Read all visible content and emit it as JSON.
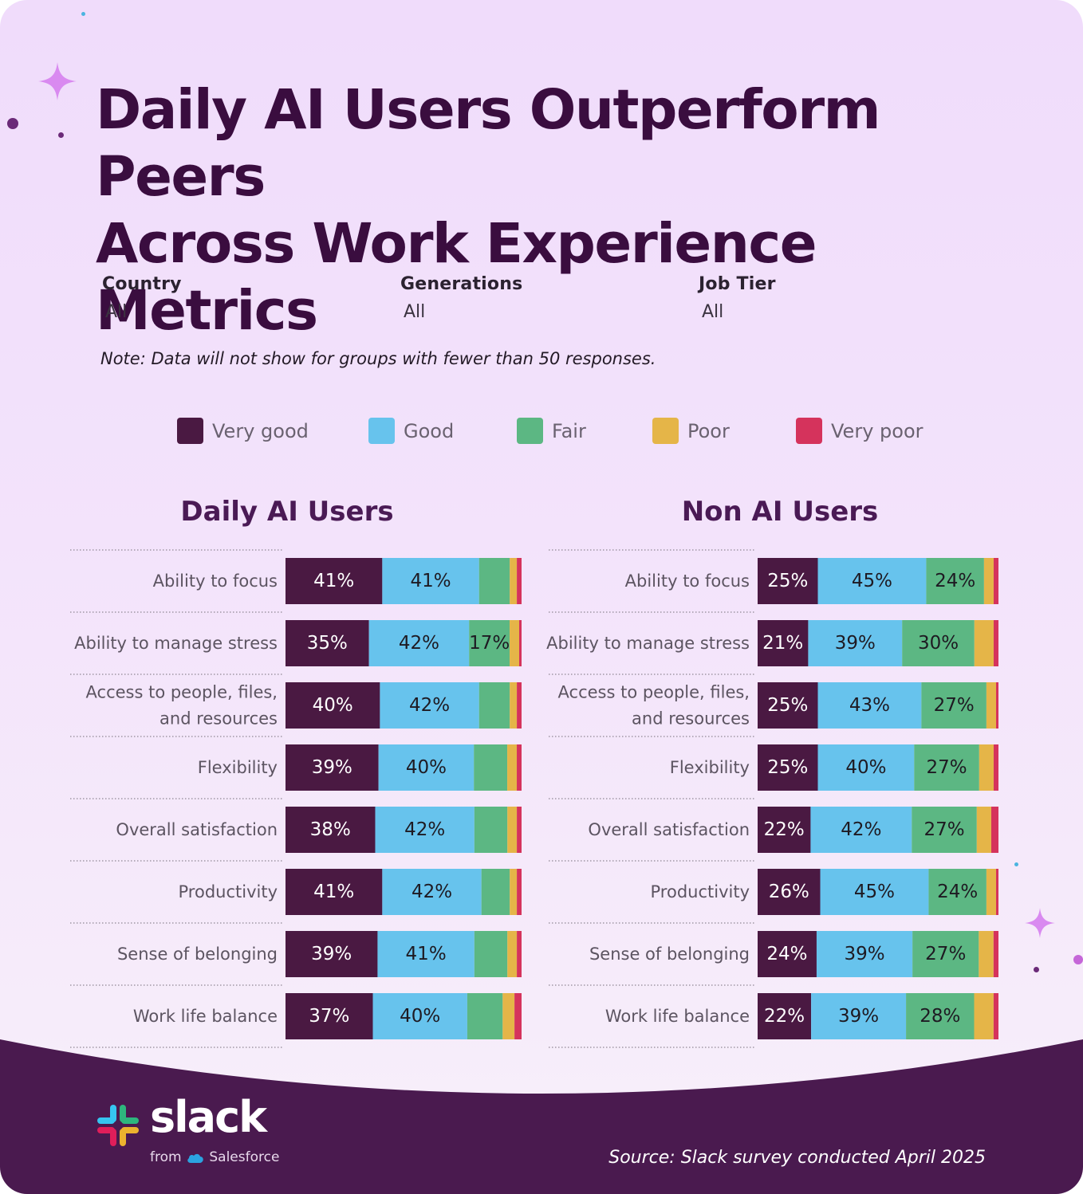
{
  "title_line1": "Daily AI Users Outperform Peers",
  "title_line2": "Across Work Experience Metrics",
  "filters": [
    {
      "label": "Country",
      "value": "All"
    },
    {
      "label": "Generations",
      "value": "All"
    },
    {
      "label": "Job Tier",
      "value": "All"
    }
  ],
  "note": "Note: Data will not show for groups with fewer than 50 responses.",
  "legend": [
    {
      "label": "Very good",
      "color": "#4a1942"
    },
    {
      "label": "Good",
      "color": "#67c3ed"
    },
    {
      "label": "Fair",
      "color": "#5cb783"
    },
    {
      "label": "Poor",
      "color": "#e5b548"
    },
    {
      "label": "Very poor",
      "color": "#d5335c"
    }
  ],
  "chart_data": [
    {
      "type": "bar",
      "stacked": true,
      "orientation": "horizontal",
      "title": "Daily AI Users",
      "unit": "%",
      "categories": [
        "Ability to focus",
        "Ability to manage stress",
        "Access to people, files, and resources",
        "Flexibility",
        "Overall satisfaction",
        "Productivity",
        "Sense of belonging",
        "Work life balance"
      ],
      "series": [
        {
          "name": "Very good",
          "values": [
            41,
            35,
            40,
            39,
            38,
            41,
            39,
            37
          ]
        },
        {
          "name": "Good",
          "values": [
            41,
            42,
            42,
            40,
            42,
            42,
            41,
            40
          ]
        },
        {
          "name": "Fair",
          "values": [
            13,
            17,
            13,
            14,
            14,
            12,
            14,
            15
          ]
        },
        {
          "name": "Poor",
          "values": [
            3,
            4,
            3,
            4,
            4,
            3,
            4,
            5
          ]
        },
        {
          "name": "Very poor",
          "values": [
            2,
            1,
            2,
            2,
            2,
            2,
            2,
            3
          ]
        }
      ]
    },
    {
      "type": "bar",
      "stacked": true,
      "orientation": "horizontal",
      "title": "Non AI Users",
      "unit": "%",
      "categories": [
        "Ability to focus",
        "Ability to manage stress",
        "Access to people, files, and resources",
        "Flexibility",
        "Overall satisfaction",
        "Productivity",
        "Sense of belonging",
        "Work life balance"
      ],
      "series": [
        {
          "name": "Very good",
          "values": [
            25,
            21,
            25,
            25,
            22,
            26,
            24,
            22
          ]
        },
        {
          "name": "Good",
          "values": [
            45,
            39,
            43,
            40,
            42,
            45,
            39,
            39
          ]
        },
        {
          "name": "Fair",
          "values": [
            24,
            30,
            27,
            27,
            27,
            24,
            27,
            28
          ]
        },
        {
          "name": "Poor",
          "values": [
            4,
            8,
            4,
            6,
            6,
            4,
            6,
            8
          ]
        },
        {
          "name": "Very poor",
          "values": [
            2,
            2,
            1,
            2,
            3,
            1,
            2,
            2
          ]
        }
      ]
    }
  ],
  "brand": {
    "wordmark": "slack",
    "from_prefix": "from",
    "from_company": "Salesforce"
  },
  "source": "Source: Slack survey conducted April 2025"
}
